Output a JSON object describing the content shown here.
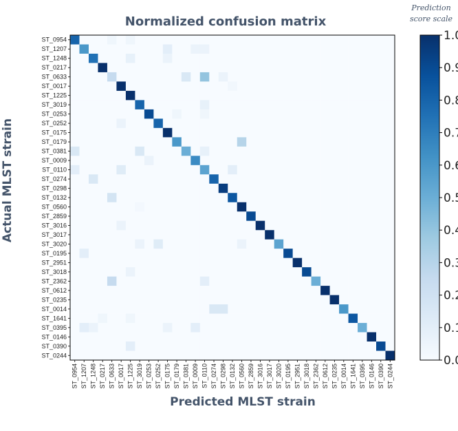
{
  "chart_data": {
    "type": "heatmap",
    "title": "Normalized confusion matrix",
    "xlabel": "Predicted MLST strain",
    "ylabel": "Actual MLST strain",
    "categories": [
      "ST_0954",
      "ST_1207",
      "ST_1248",
      "ST_0217",
      "ST_0633",
      "ST_0017",
      "ST_1225",
      "ST_3019",
      "ST_0253",
      "ST_0252",
      "ST_0175",
      "ST_0179",
      "ST_0381",
      "ST_0009",
      "ST_0110",
      "ST_0274",
      "ST_0298",
      "ST_0132",
      "ST_0560",
      "ST_2859",
      "ST_3016",
      "ST_3017",
      "ST_3020",
      "ST_0195",
      "ST_2951",
      "ST_3018",
      "ST_2362",
      "ST_0612",
      "ST_0235",
      "ST_0014",
      "ST_1641",
      "ST_0395",
      "ST_0146",
      "ST_0390",
      "ST_0244"
    ],
    "diagonal": [
      0.8,
      0.6,
      0.75,
      1.0,
      0.25,
      1.0,
      1.0,
      0.8,
      0.9,
      0.8,
      1.0,
      0.6,
      0.5,
      0.65,
      0.55,
      0.8,
      0.95,
      0.85,
      1.0,
      0.9,
      1.0,
      1.0,
      0.55,
      0.9,
      1.0,
      0.9,
      0.5,
      1.0,
      1.0,
      0.6,
      0.85,
      0.5,
      1.0,
      0.9,
      1.0
    ],
    "off_diagonal": [
      [
        0,
        4,
        0.04
      ],
      [
        0,
        6,
        0.04
      ],
      [
        1,
        10,
        0.1
      ],
      [
        1,
        13,
        0.06
      ],
      [
        1,
        14,
        0.06
      ],
      [
        2,
        6,
        0.08
      ],
      [
        2,
        10,
        0.06
      ],
      [
        4,
        12,
        0.15
      ],
      [
        4,
        14,
        0.4
      ],
      [
        4,
        16,
        0.06
      ],
      [
        5,
        17,
        0.03
      ],
      [
        7,
        7,
        0.1
      ],
      [
        7,
        14,
        0.08
      ],
      [
        8,
        11,
        0.04
      ],
      [
        8,
        14,
        0.04
      ],
      [
        9,
        5,
        0.06
      ],
      [
        9,
        9,
        0.08
      ],
      [
        11,
        18,
        0.3
      ],
      [
        12,
        0,
        0.15
      ],
      [
        12,
        7,
        0.15
      ],
      [
        12,
        14,
        0.08
      ],
      [
        13,
        8,
        0.06
      ],
      [
        14,
        0,
        0.1
      ],
      [
        14,
        5,
        0.12
      ],
      [
        14,
        17,
        0.1
      ],
      [
        15,
        2,
        0.15
      ],
      [
        17,
        4,
        0.18
      ],
      [
        18,
        7,
        0.02
      ],
      [
        20,
        5,
        0.06
      ],
      [
        22,
        7,
        0.06
      ],
      [
        22,
        9,
        0.12
      ],
      [
        22,
        18,
        0.06
      ],
      [
        23,
        1,
        0.1
      ],
      [
        25,
        6,
        0.06
      ],
      [
        26,
        4,
        0.25
      ],
      [
        26,
        14,
        0.1
      ],
      [
        29,
        15,
        0.15
      ],
      [
        29,
        16,
        0.15
      ],
      [
        30,
        3,
        0.04
      ],
      [
        30,
        6,
        0.04
      ],
      [
        31,
        1,
        0.1
      ],
      [
        31,
        2,
        0.06
      ],
      [
        31,
        10,
        0.06
      ],
      [
        31,
        13,
        0.1
      ],
      [
        33,
        6,
        0.1
      ]
    ],
    "vmin": 0,
    "vmax": 1,
    "colorbar": {
      "caption_line1": "Prediction",
      "caption_line2": "score scale",
      "ticks": [
        "1.0",
        "0.9",
        "0.8",
        "0.7",
        "0.6",
        "0.5",
        "0.4",
        "0.3",
        "0.2",
        "0.1",
        "0.0"
      ]
    }
  }
}
